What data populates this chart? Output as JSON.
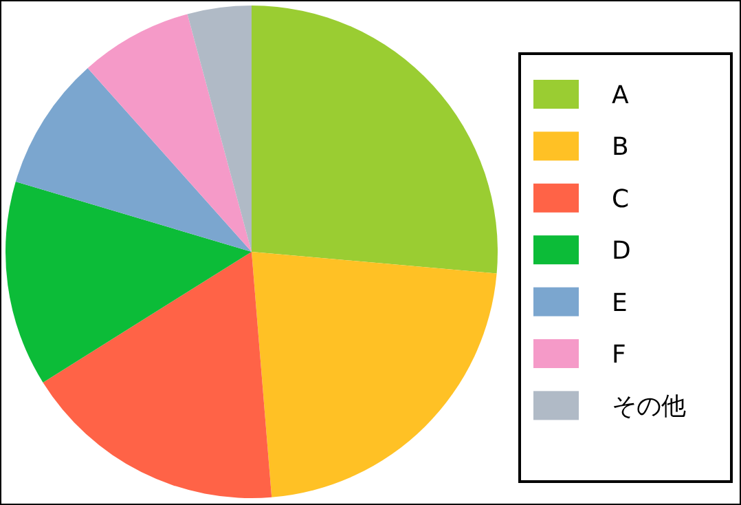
{
  "chart_data": {
    "type": "pie",
    "categories": [
      "A",
      "B",
      "C",
      "D",
      "E",
      "F",
      "その他"
    ],
    "values": [
      26.4,
      22.3,
      17.4,
      13.5,
      8.8,
      7.4,
      4.2
    ],
    "colors": [
      "#9acd32",
      "#ffc125",
      "#ff6347",
      "#0cbc38",
      "#7ba6cf",
      "#f59ac8",
      "#b0bac6"
    ],
    "legend": "right"
  }
}
